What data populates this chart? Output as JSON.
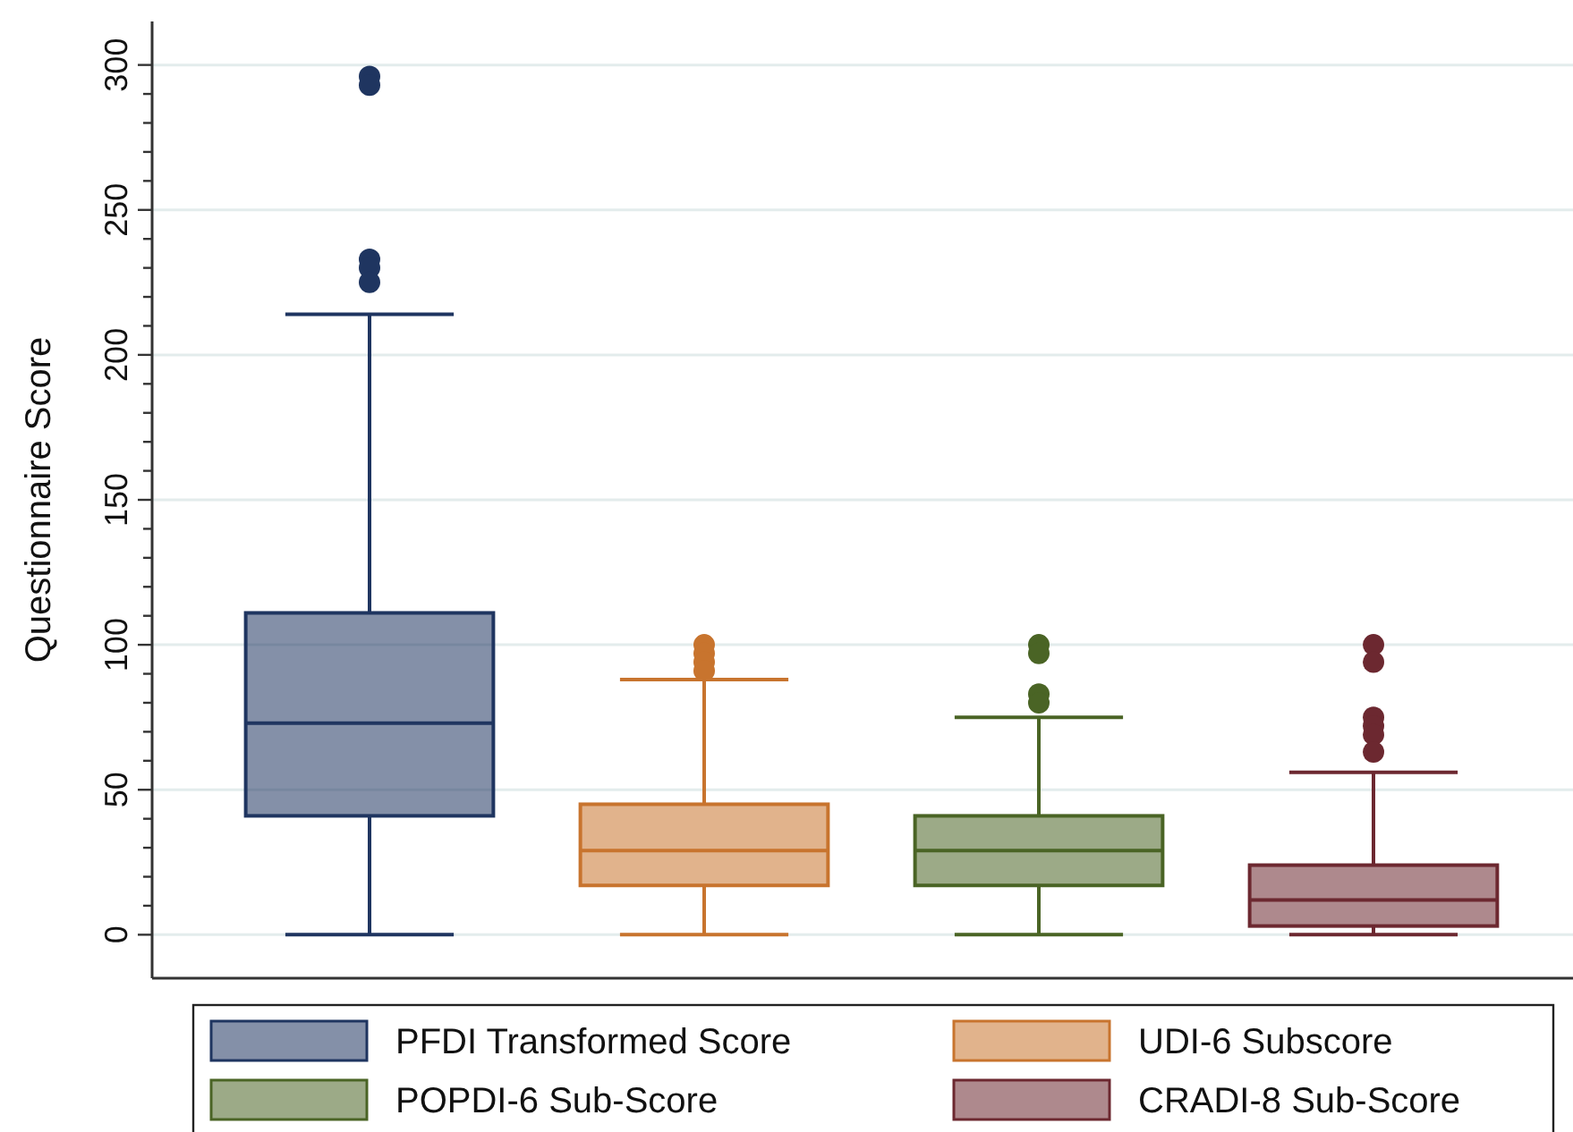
{
  "chart_data": {
    "type": "box",
    "ylabel": "Questionnaire Score",
    "categories": [
      null,
      null,
      null,
      null
    ],
    "ylim": [
      -15,
      315
    ],
    "yticks": [
      0,
      {
        "value": 10,
        "label": null
      },
      {
        "value": 20,
        "label": null
      },
      {
        "value": 30,
        "label": null
      },
      {
        "value": 40,
        "label": null
      },
      50,
      {
        "value": 60,
        "label": null
      },
      {
        "value": 70,
        "label": null
      },
      {
        "value": 80,
        "label": null
      },
      {
        "value": 90,
        "label": null
      },
      100,
      {
        "value": 110,
        "label": null
      },
      {
        "value": 120,
        "label": null
      },
      {
        "value": 130,
        "label": null
      },
      {
        "value": 140,
        "label": null
      },
      150,
      {
        "value": 160,
        "label": null
      },
      {
        "value": 170,
        "label": null
      },
      {
        "value": 180,
        "label": null
      },
      {
        "value": 190,
        "label": null
      },
      200,
      {
        "value": 210,
        "label": null
      },
      {
        "value": 220,
        "label": null
      },
      {
        "value": 230,
        "label": null
      },
      {
        "value": 240,
        "label": null
      },
      250,
      {
        "value": 260,
        "label": null
      },
      {
        "value": 270,
        "label": null
      },
      {
        "value": 280,
        "label": null
      },
      {
        "value": 290,
        "label": null
      },
      300
    ],
    "grid": "y",
    "legend": "bottom",
    "marker": "circle",
    "series": [
      {
        "name": "PFDI Transformed Score",
        "color": "#1f3560",
        "boxes": [
          {
            "low": 0,
            "q1": 41,
            "median": 73,
            "q3": 111,
            "high": 214,
            "outliers": [
              296,
              293,
              233,
              230,
              225
            ]
          },
          null,
          null,
          null
        ]
      },
      {
        "name": "UDI-6 Subscore",
        "color": "#c8742e",
        "boxes": [
          null,
          {
            "low": 0,
            "q1": 17,
            "median": 29,
            "q3": 45,
            "high": 88,
            "outliers": [
              100,
              97,
              94,
              91
            ]
          },
          null,
          null
        ]
      },
      {
        "name": "POPDI-6 Sub-Score",
        "color": "#4a6425",
        "boxes": [
          null,
          null,
          {
            "low": 0,
            "q1": 17,
            "median": 29,
            "q3": 41,
            "high": 75,
            "outliers": [
              100,
              97,
              83,
              80
            ]
          },
          null
        ]
      },
      {
        "name": "CRADI-8 Sub-Score",
        "color": "#6c2830",
        "boxes": [
          null,
          null,
          null,
          {
            "low": 0,
            "q1": 3,
            "median": 12,
            "q3": 24,
            "high": 56,
            "outliers": [
              100,
              94,
              75,
              72,
              69,
              63
            ]
          }
        ]
      }
    ]
  }
}
